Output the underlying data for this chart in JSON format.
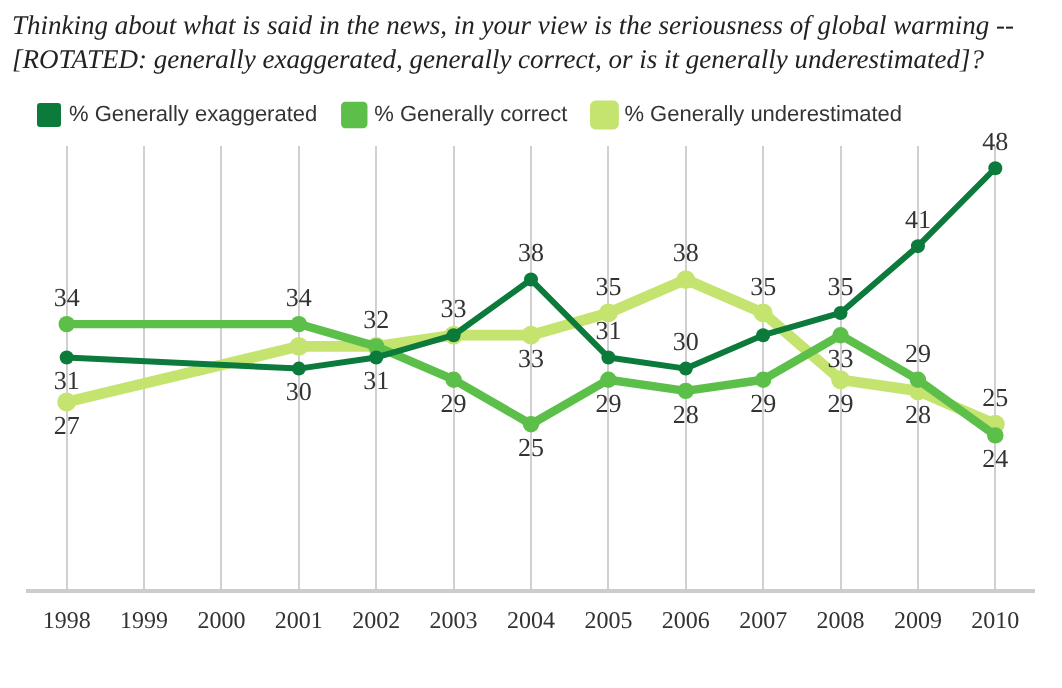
{
  "chart_data": {
    "type": "line",
    "title": "Thinking about what is said in the news, in your view is the seriousness of global warming -- [ROTATED: generally exaggerated, generally correct, or is it generally underestimated]?",
    "categories": [
      "1998",
      "1999",
      "2000",
      "2001",
      "2002",
      "2003",
      "2004",
      "2005",
      "2006",
      "2007",
      "2008",
      "2009",
      "2010"
    ],
    "series": [
      {
        "name": "% Generally exaggerated",
        "color": "#0b7a3b",
        "values": [
          31,
          null,
          null,
          30,
          31,
          33,
          38,
          31,
          30,
          33,
          35,
          41,
          48
        ],
        "value_labels": [
          "31",
          null,
          null,
          "30",
          "31",
          "33",
          "38",
          "31",
          "30",
          null,
          "35",
          "41",
          "48"
        ]
      },
      {
        "name": "% Generally correct",
        "color": "#5cbf4a",
        "values": [
          34,
          null,
          null,
          34,
          32,
          29,
          25,
          29,
          28,
          29,
          33,
          29,
          24
        ],
        "value_labels": [
          "34",
          null,
          null,
          "34",
          "32",
          "29",
          "25",
          "29",
          "28",
          "29",
          "33",
          "29",
          "24"
        ]
      },
      {
        "name": "% Generally underestimated",
        "color": "#c4e46f",
        "values": [
          27,
          null,
          null,
          32,
          32,
          33,
          33,
          35,
          38,
          35,
          29,
          28,
          25
        ],
        "value_labels": [
          "27",
          null,
          null,
          null,
          null,
          null,
          "33",
          "35",
          "38",
          "35",
          "29",
          "28",
          "25"
        ]
      }
    ],
    "ylim": [
      10,
      50
    ],
    "relative": false,
    "grid": "x",
    "legend": "top left",
    "marker": "circle"
  }
}
